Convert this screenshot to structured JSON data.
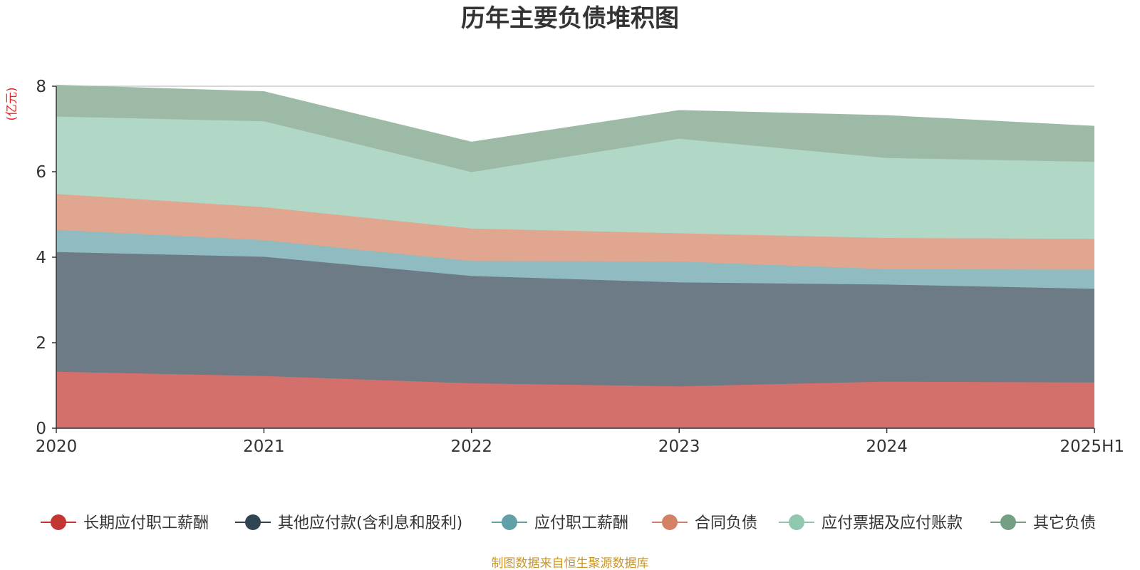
{
  "chart_data": {
    "type": "area",
    "stacked": true,
    "title": "历年主要负债堆积图",
    "unit_label": "(亿元)",
    "source": "制图数据来自恒生聚源数据库",
    "x": [
      "2020",
      "2021",
      "2022",
      "2023",
      "2024",
      "2025H1"
    ],
    "ylim": [
      0,
      8
    ],
    "yticks": [
      0,
      2,
      4,
      6,
      8
    ],
    "grid": true,
    "legend_position": "bottom",
    "series": [
      {
        "name": "长期应付职工薪酬",
        "color": "#c23531",
        "fill": "#d4706c",
        "values": [
          1.32,
          1.22,
          1.05,
          0.98,
          1.09,
          1.07
        ]
      },
      {
        "name": "其他应付款(含利息和股利)",
        "color": "#2f4554",
        "fill": "#6d7b87",
        "values": [
          2.8,
          2.79,
          2.51,
          2.43,
          2.27,
          2.19
        ]
      },
      {
        "name": "应付职工薪酬",
        "color": "#61a0a8",
        "fill": "#90bbc1",
        "values": [
          0.52,
          0.39,
          0.35,
          0.49,
          0.36,
          0.45
        ]
      },
      {
        "name": "合同负债",
        "color": "#d48265",
        "fill": "#e0a690",
        "values": [
          0.84,
          0.77,
          0.76,
          0.66,
          0.73,
          0.72
        ]
      },
      {
        "name": "应付票据及应付账款",
        "color": "#91c7ae",
        "fill": "#b1d8c6",
        "values": [
          1.81,
          2.01,
          1.32,
          2.21,
          1.87,
          1.8
        ]
      },
      {
        "name": "其它负债",
        "color": "#749f83",
        "fill": "#9dbaa7",
        "values": [
          0.73,
          0.69,
          0.7,
          0.66,
          0.99,
          0.83
        ]
      }
    ]
  }
}
